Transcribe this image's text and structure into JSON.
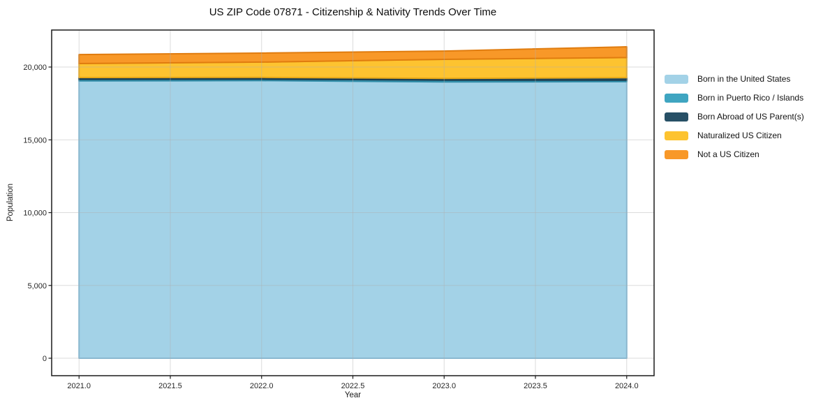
{
  "figure": {
    "background": "#ffffff"
  },
  "chart_data": {
    "type": "area",
    "stacked": true,
    "title": "US ZIP Code 07871 - Citizenship & Nativity Trends Over Time",
    "xlabel": "Year",
    "ylabel": "Population",
    "x": [
      2021,
      2022,
      2023,
      2024
    ],
    "series": [
      {
        "name": "Born in the United States",
        "color": "#A3D2E7",
        "edge_color": "#7FBBD9",
        "values": [
          19050,
          19070,
          18980,
          19000
        ]
      },
      {
        "name": "Born in Puerto Rico / Islands",
        "color": "#3FA5C1",
        "edge_color": "#2F8BA6",
        "values": [
          110,
          100,
          120,
          100
        ]
      },
      {
        "name": "Born Abroad of US Parent(s)",
        "color": "#275066",
        "edge_color": "#1B3A4C",
        "values": [
          120,
          120,
          120,
          170
        ]
      },
      {
        "name": "Naturalized US Citizen",
        "color": "#FDC330",
        "edge_color": "#E9A816",
        "values": [
          960,
          1050,
          1310,
          1380
        ]
      },
      {
        "name": "Not a US Citizen",
        "color": "#F89828",
        "edge_color": "#E07C0F",
        "values": [
          620,
          620,
          570,
          740
        ]
      }
    ],
    "xlim": [
      2020.85,
      2024.15
    ],
    "ylim": [
      -1199,
      22542
    ],
    "xticks": {
      "values": [
        2021.0,
        2021.5,
        2022.0,
        2022.5,
        2023.0,
        2023.5,
        2024.0
      ],
      "labels": [
        "2021.0",
        "2021.5",
        "2022.0",
        "2022.5",
        "2023.0",
        "2023.5",
        "2024.0"
      ]
    },
    "yticks": {
      "values": [
        0,
        5000,
        10000,
        15000,
        20000
      ],
      "labels": [
        "0",
        "5,000",
        "10,000",
        "15,000",
        "20,000"
      ]
    },
    "grid": true,
    "grid_color": "rgba(175,175,175,0.45)",
    "axis_color": "#1a1a1a",
    "tick_label_color": "#262626",
    "legend_position": "right-outside"
  }
}
